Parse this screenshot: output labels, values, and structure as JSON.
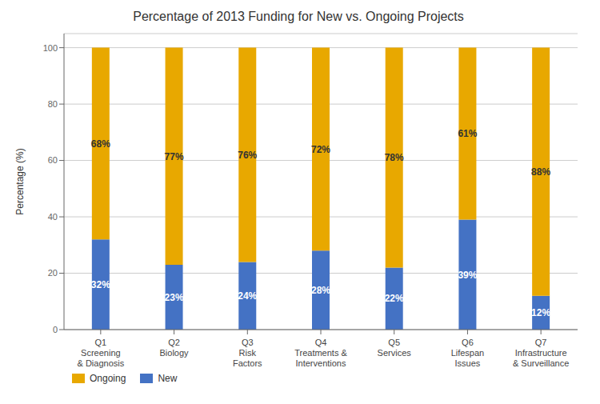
{
  "chart_data": {
    "type": "bar",
    "title": "Percentage of 2013 Funding for New vs. Ongoing Projects",
    "categories": [
      "Q1\nScreening\n& Diagnosis",
      "Q2\nBiology",
      "Q3\nRisk\nFactors",
      "Q4\nTreatments &\nInterventions",
      "Q5\nServices",
      "Q6\nLifespan\nIssues",
      "Q7\nInfrastructure\n& Surveillance"
    ],
    "ylabel": "Percentage (%)",
    "stacked": true,
    "data_labels": true,
    "grid": true,
    "legend": "bottom",
    "ylim": [
      0,
      105
    ],
    "yticks": [
      0,
      20,
      40,
      60,
      80,
      100
    ],
    "series": [
      {
        "name": "New",
        "color": "#4472C4",
        "values": [
          32,
          23,
          24,
          28,
          22,
          39,
          12
        ],
        "value_labels": [
          "32%",
          "23%",
          "24%",
          "28%",
          "22%",
          "39%",
          "12%"
        ]
      },
      {
        "name": "Ongoing",
        "color": "#E8A800",
        "values": [
          68,
          77,
          76,
          72,
          78,
          61,
          88
        ],
        "value_labels": [
          "68%",
          "77%",
          "76%",
          "72%",
          "78%",
          "61%",
          "88%"
        ]
      }
    ]
  }
}
